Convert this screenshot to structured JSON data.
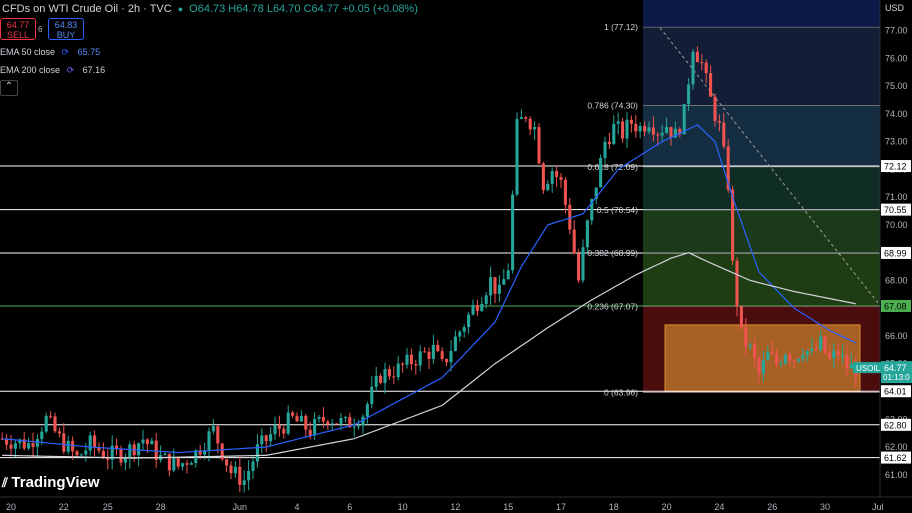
{
  "header": {
    "title": "CFDs on WTI Crude Oil · 2h · TVC",
    "ohlc": "O64.73 H64.78 L64.70 C64.77 +0.05 (+0.08%)",
    "sell_price": "64.77",
    "sell_label": "SELL",
    "buy_price": "64.83",
    "buy_label": "BUY",
    "spread": "6"
  },
  "indicators": [
    {
      "label": "EMA 50 close",
      "value": "65.75",
      "color": "#2962ff"
    },
    {
      "label": "EMA 200 close",
      "value": "67.16",
      "color": "#d1d4dc"
    }
  ],
  "logo": "TradingView",
  "colors": {
    "up": "#26a69a",
    "down": "#ef5350",
    "ema50": "#2962ff",
    "ema200": "#d1d4dc"
  },
  "chart_data": {
    "type": "candlestick",
    "symbol": "USOIL",
    "last_price": "64.77",
    "countdown": "01:13:0",
    "currency_label": "USD",
    "ylim": [
      60.2,
      78.1
    ],
    "y_ticks": [
      61,
      62,
      63,
      64,
      65,
      66,
      67,
      68,
      69,
      70,
      71,
      72,
      73,
      74,
      75,
      76,
      77
    ],
    "x_ticks": [
      {
        "label": "20",
        "index": 2
      },
      {
        "label": "22",
        "index": 14
      },
      {
        "label": "25",
        "index": 24
      },
      {
        "label": "28",
        "index": 36
      },
      {
        "label": "Jun",
        "index": 54
      },
      {
        "label": "4",
        "index": 67
      },
      {
        "label": "6",
        "index": 79
      },
      {
        "label": "10",
        "index": 91
      },
      {
        "label": "12",
        "index": 103
      },
      {
        "label": "15",
        "index": 115
      },
      {
        "label": "17",
        "index": 127
      },
      {
        "label": "18",
        "index": 139
      },
      {
        "label": "20",
        "index": 151
      },
      {
        "label": "24",
        "index": 163
      },
      {
        "label": "26",
        "index": 175
      },
      {
        "label": "30",
        "index": 187
      },
      {
        "label": "Jul",
        "index": 199
      }
    ],
    "horizontal_levels": [
      {
        "price": 72.12,
        "label": "72.12",
        "color": "#ffffff"
      },
      {
        "price": 70.55,
        "label": "70.55",
        "color": "#ffffff"
      },
      {
        "price": 68.99,
        "label": "68.99",
        "color": "#ffffff"
      },
      {
        "price": 67.08,
        "label": "67.08",
        "color": "#4caf50"
      },
      {
        "price": 64.01,
        "label": "64.01",
        "color": "#ffffff"
      },
      {
        "price": 62.8,
        "label": "62.80",
        "color": "#ffffff"
      },
      {
        "price": 61.62,
        "label": "61.62",
        "color": "#ffffff"
      }
    ],
    "fibonacci": [
      {
        "label": "1 (77.12)",
        "price": 77.12
      },
      {
        "label": "0.786 (74.30)",
        "price": 74.3
      },
      {
        "label": "0.618 (72.09)",
        "price": 72.09
      },
      {
        "label": "0.5 (70.54)",
        "price": 70.54
      },
      {
        "label": "0.382 (68.99)",
        "price": 68.99
      },
      {
        "label": "0.236 (67.07)",
        "price": 67.07
      },
      {
        "label": "0 (63.96)",
        "price": 63.96
      }
    ],
    "fib_zone_colors": [
      "#131d35",
      "#152d40",
      "#0f2d24",
      "#1a3a1a",
      "#1f3d12",
      "#4a0c0c"
    ],
    "consolidation_box": {
      "price_top": 66.4,
      "price_bottom": 64.0,
      "color": "#c77d2e"
    },
    "diagonal_line": {
      "from_price": 77.1,
      "to_price": 67.1
    },
    "close_path": [
      [
        0,
        62.3
      ],
      [
        6,
        62.1
      ],
      [
        10,
        63.0
      ],
      [
        13,
        62.3
      ],
      [
        17,
        61.6
      ],
      [
        20,
        62.1
      ],
      [
        24,
        61.7
      ],
      [
        28,
        61.8
      ],
      [
        32,
        62.3
      ],
      [
        36,
        61.6
      ],
      [
        40,
        61.3
      ],
      [
        44,
        61.8
      ],
      [
        48,
        62.6
      ],
      [
        52,
        61.1
      ],
      [
        55,
        60.8
      ],
      [
        58,
        61.9
      ],
      [
        62,
        62.6
      ],
      [
        66,
        63.0
      ],
      [
        70,
        62.6
      ],
      [
        74,
        63.1
      ],
      [
        78,
        62.8
      ],
      [
        82,
        63.2
      ],
      [
        86,
        64.6
      ],
      [
        90,
        64.8
      ],
      [
        94,
        65.2
      ],
      [
        98,
        65.5
      ],
      [
        100,
        64.9
      ],
      [
        103,
        65.9
      ],
      [
        107,
        67.0
      ],
      [
        111,
        68.0
      ],
      [
        113,
        67.5
      ],
      [
        115,
        68.5
      ],
      [
        117,
        73.5
      ],
      [
        119,
        74.0
      ],
      [
        121,
        73.5
      ],
      [
        123,
        71.5
      ],
      [
        125,
        72.0
      ],
      [
        127,
        71.5
      ],
      [
        129,
        70.0
      ],
      [
        131,
        68.0
      ],
      [
        133,
        70.0
      ],
      [
        135,
        71.5
      ],
      [
        137,
        73.0
      ],
      [
        139,
        73.5
      ],
      [
        141,
        73.3
      ],
      [
        143,
        73.7
      ],
      [
        145,
        73.5
      ],
      [
        147,
        73.8
      ],
      [
        149,
        73.4
      ],
      [
        151,
        73.6
      ],
      [
        153,
        73.2
      ],
      [
        155,
        74.0
      ],
      [
        157,
        76.5
      ],
      [
        159,
        75.8
      ],
      [
        161,
        74.5
      ],
      [
        163,
        73.5
      ],
      [
        165,
        71.5
      ],
      [
        166,
        68.5
      ],
      [
        168,
        66.0
      ],
      [
        170,
        65.5
      ],
      [
        172,
        64.6
      ],
      [
        174,
        65.3
      ],
      [
        176,
        65.0
      ],
      [
        178,
        65.5
      ],
      [
        180,
        65.2
      ],
      [
        182,
        65.6
      ],
      [
        184,
        65.3
      ],
      [
        186,
        65.7
      ],
      [
        188,
        65.1
      ],
      [
        190,
        65.4
      ],
      [
        192,
        64.9
      ],
      [
        194,
        64.8
      ]
    ],
    "ema50_path": [
      [
        0,
        62.3
      ],
      [
        20,
        62.0
      ],
      [
        40,
        61.8
      ],
      [
        60,
        62.0
      ],
      [
        80,
        62.8
      ],
      [
        100,
        64.5
      ],
      [
        112,
        66.5
      ],
      [
        118,
        68.5
      ],
      [
        124,
        70.0
      ],
      [
        132,
        70.4
      ],
      [
        140,
        72.0
      ],
      [
        150,
        73.0
      ],
      [
        158,
        73.6
      ],
      [
        162,
        73.0
      ],
      [
        166,
        71.0
      ],
      [
        172,
        68.3
      ],
      [
        180,
        67.0
      ],
      [
        188,
        66.2
      ],
      [
        194,
        65.75
      ]
    ],
    "ema200_path": [
      [
        0,
        61.7
      ],
      [
        30,
        61.6
      ],
      [
        60,
        61.7
      ],
      [
        80,
        62.3
      ],
      [
        100,
        63.5
      ],
      [
        112,
        65.0
      ],
      [
        124,
        66.3
      ],
      [
        134,
        67.3
      ],
      [
        144,
        68.2
      ],
      [
        152,
        68.8
      ],
      [
        156,
        69.0
      ],
      [
        160,
        68.7
      ],
      [
        170,
        68.0
      ],
      [
        180,
        67.6
      ],
      [
        194,
        67.16
      ]
    ]
  }
}
